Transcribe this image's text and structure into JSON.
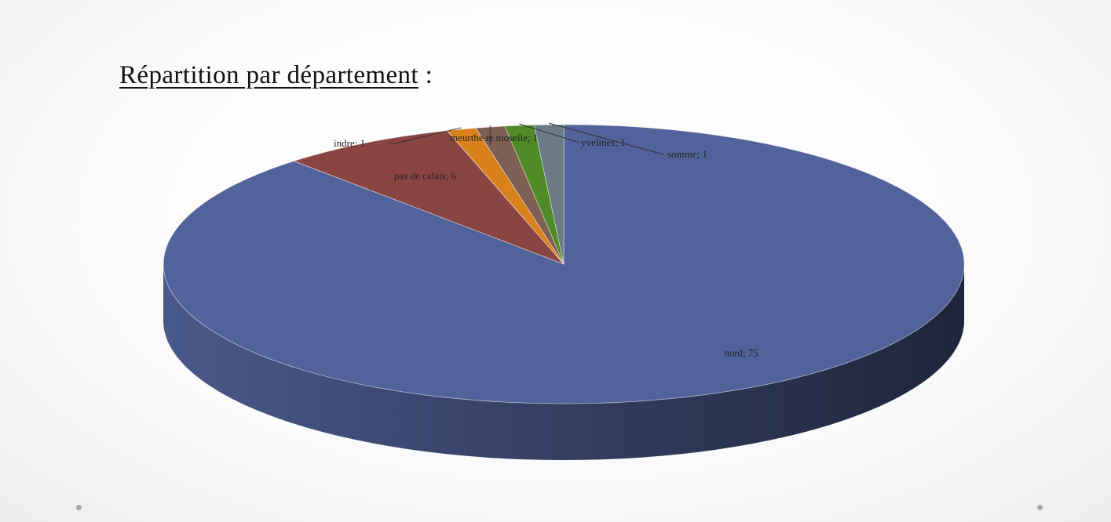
{
  "title": {
    "text": "Répartition par département",
    "suffix": " :"
  },
  "chart_data": {
    "type": "pie",
    "style": "3d",
    "title": "Répartition par département",
    "slices": [
      {
        "label": "nord",
        "value": 75,
        "color": "#52639b",
        "data_label": "nord; 75"
      },
      {
        "label": "pas de calais",
        "value": 6,
        "color": "#8a4442",
        "data_label": "pas de calais; 6"
      },
      {
        "label": "indre",
        "value": 1,
        "color": "#d9821c",
        "data_label": "indre; 1"
      },
      {
        "label": "meurthe et moselle",
        "value": 1,
        "color": "#7d5f54",
        "data_label": "meurthe et moselle; 1"
      },
      {
        "label": "yvelines",
        "value": 1,
        "color": "#4e8a25",
        "data_label": "yvelines; 1"
      },
      {
        "label": "somme",
        "value": 1,
        "color": "#6a7b85",
        "data_label": "somme; 1"
      }
    ]
  }
}
